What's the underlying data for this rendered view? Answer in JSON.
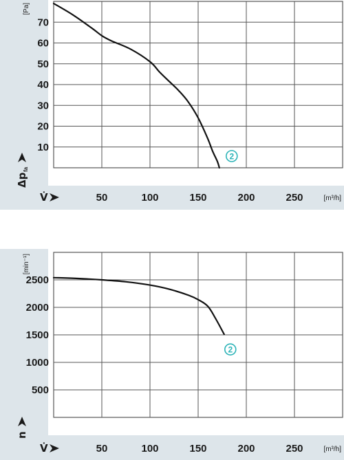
{
  "colors": {
    "panel_bg": "#dde5ea",
    "grid": "#555555",
    "curve": "#111111",
    "marker": "#2bb3b7"
  },
  "chart_data": [
    {
      "type": "line",
      "ylabel": "Δp",
      "ylabel_sub": "fa",
      "yunit": "[Pa]",
      "xlabel": "V̇",
      "xunit": "[m³/h]",
      "xlim": [
        0,
        300
      ],
      "ylim": [
        0,
        80
      ],
      "xticks": [
        50,
        100,
        150,
        200,
        250
      ],
      "yticks": [
        10,
        20,
        30,
        40,
        50,
        60,
        70
      ],
      "grid": true,
      "series": [
        {
          "marker_label": "2",
          "x": [
            0,
            20,
            40,
            50,
            60,
            80,
            100,
            110,
            120,
            130,
            140,
            150,
            160,
            165,
            170,
            172
          ],
          "y": [
            79,
            73.5,
            67,
            63.5,
            61,
            57,
            51,
            46,
            41.5,
            37,
            31.5,
            24,
            14,
            8,
            3,
            0
          ]
        }
      ]
    },
    {
      "type": "line",
      "ylabel": "n",
      "yunit": "[min⁻¹]",
      "xlabel": "V̇",
      "xunit": "[m³/h]",
      "xlim": [
        0,
        300
      ],
      "ylim": [
        0,
        3000
      ],
      "xticks": [
        50,
        100,
        150,
        200,
        250
      ],
      "yticks": [
        500,
        1000,
        1500,
        2000,
        2500
      ],
      "grid": true,
      "series": [
        {
          "marker_label": "2",
          "x": [
            0,
            25,
            50,
            75,
            100,
            120,
            140,
            150,
            160,
            168,
            177
          ],
          "y": [
            2540,
            2525,
            2500,
            2465,
            2405,
            2330,
            2220,
            2140,
            2020,
            1800,
            1510
          ]
        }
      ]
    }
  ]
}
